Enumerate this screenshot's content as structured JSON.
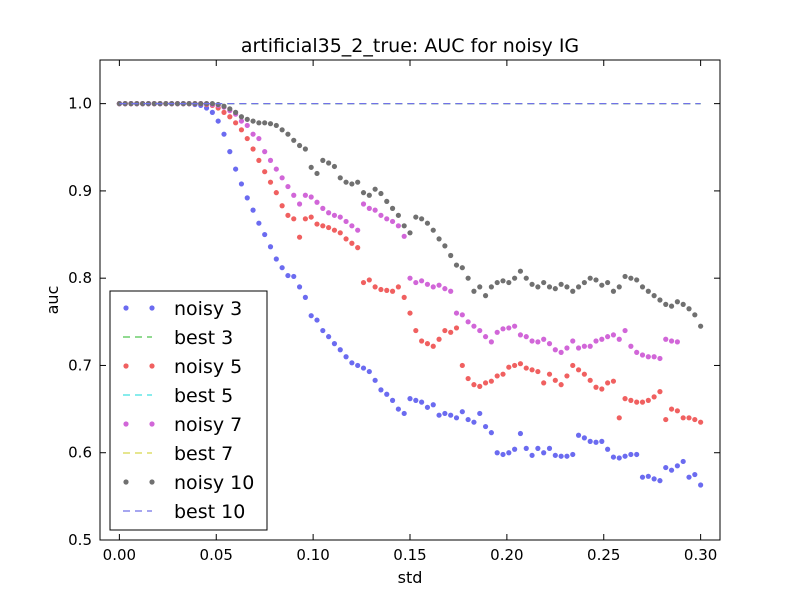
{
  "chart_data": {
    "type": "scatter",
    "title": "artificial35_2_true: AUC for noisy IG",
    "xlabel": "std",
    "ylabel": "auc",
    "xlim": [
      -0.01,
      0.31
    ],
    "ylim": [
      0.5,
      1.05
    ],
    "xticks": [
      "0.00",
      "0.05",
      "0.10",
      "0.15",
      "0.20",
      "0.25",
      "0.30"
    ],
    "yticks": [
      "0.5",
      "0.6",
      "0.7",
      "0.8",
      "0.9",
      "1.0"
    ],
    "legend_position": "lower-left",
    "grid": false,
    "series": [
      {
        "name": "noisy 3",
        "kind": "points",
        "color": "#6b6bf0",
        "x": [
          0.0,
          0.003,
          0.006,
          0.009,
          0.012,
          0.015,
          0.018,
          0.021,
          0.024,
          0.027,
          0.03,
          0.033,
          0.036,
          0.039,
          0.042,
          0.045,
          0.048,
          0.051,
          0.054,
          0.057,
          0.06,
          0.063,
          0.066,
          0.069,
          0.072,
          0.075,
          0.078,
          0.081,
          0.084,
          0.087,
          0.09,
          0.093,
          0.096,
          0.099,
          0.102,
          0.105,
          0.108,
          0.111,
          0.114,
          0.117,
          0.12,
          0.123,
          0.126,
          0.129,
          0.132,
          0.135,
          0.138,
          0.141,
          0.144,
          0.147,
          0.15,
          0.153,
          0.156,
          0.159,
          0.162,
          0.165,
          0.168,
          0.171,
          0.174,
          0.177,
          0.18,
          0.183,
          0.186,
          0.189,
          0.192,
          0.195,
          0.198,
          0.201,
          0.204,
          0.207,
          0.21,
          0.213,
          0.216,
          0.219,
          0.222,
          0.225,
          0.228,
          0.231,
          0.234,
          0.237,
          0.24,
          0.243,
          0.246,
          0.249,
          0.252,
          0.255,
          0.258,
          0.261,
          0.264,
          0.267,
          0.27,
          0.273,
          0.276,
          0.279,
          0.282,
          0.285,
          0.288,
          0.291,
          0.294,
          0.297,
          0.3
        ],
        "y": [
          1.0,
          1.0,
          1.0,
          1.0,
          1.0,
          1.0,
          1.0,
          1.0,
          1.0,
          1.0,
          1.0,
          1.0,
          1.0,
          0.999,
          0.998,
          0.995,
          0.99,
          0.98,
          0.965,
          0.945,
          0.925,
          0.908,
          0.892,
          0.878,
          0.863,
          0.85,
          0.836,
          0.822,
          0.812,
          0.803,
          0.802,
          0.79,
          0.778,
          0.757,
          0.752,
          0.74,
          0.733,
          0.725,
          0.718,
          0.71,
          0.703,
          0.7,
          0.697,
          0.693,
          0.683,
          0.672,
          0.667,
          0.66,
          0.65,
          0.645,
          0.662,
          0.66,
          0.658,
          0.652,
          0.655,
          0.643,
          0.645,
          0.643,
          0.64,
          0.647,
          0.638,
          0.635,
          0.645,
          0.63,
          0.623,
          0.6,
          0.598,
          0.6,
          0.604,
          0.622,
          0.605,
          0.597,
          0.605,
          0.6,
          0.605,
          0.597,
          0.596,
          0.596,
          0.598,
          0.62,
          0.617,
          0.613,
          0.612,
          0.613,
          0.604,
          0.595,
          0.594,
          0.596,
          0.598,
          0.598,
          0.572,
          0.573,
          0.57,
          0.568,
          0.583,
          0.58,
          0.585,
          0.59,
          0.572,
          0.575,
          0.563
        ]
      },
      {
        "name": "best 3",
        "kind": "dashed",
        "color": "#4fc44f",
        "x": [
          0.0,
          0.3
        ],
        "y": [
          1.0,
          1.0
        ]
      },
      {
        "name": "noisy 5",
        "kind": "points",
        "color": "#f06060",
        "x": [
          0.0,
          0.003,
          0.006,
          0.009,
          0.012,
          0.015,
          0.018,
          0.021,
          0.024,
          0.027,
          0.03,
          0.033,
          0.036,
          0.039,
          0.042,
          0.045,
          0.048,
          0.051,
          0.054,
          0.057,
          0.06,
          0.063,
          0.066,
          0.069,
          0.072,
          0.075,
          0.078,
          0.081,
          0.084,
          0.087,
          0.09,
          0.093,
          0.096,
          0.099,
          0.102,
          0.105,
          0.108,
          0.111,
          0.114,
          0.117,
          0.12,
          0.123,
          0.126,
          0.129,
          0.132,
          0.135,
          0.138,
          0.141,
          0.144,
          0.147,
          0.15,
          0.153,
          0.156,
          0.159,
          0.162,
          0.165,
          0.168,
          0.171,
          0.174,
          0.177,
          0.18,
          0.183,
          0.186,
          0.189,
          0.192,
          0.195,
          0.198,
          0.201,
          0.204,
          0.207,
          0.21,
          0.213,
          0.216,
          0.219,
          0.222,
          0.225,
          0.228,
          0.231,
          0.234,
          0.237,
          0.24,
          0.243,
          0.246,
          0.249,
          0.252,
          0.255,
          0.258,
          0.261,
          0.264,
          0.267,
          0.27,
          0.273,
          0.276,
          0.279,
          0.282,
          0.285,
          0.288,
          0.291,
          0.294,
          0.297,
          0.3
        ],
        "y": [
          1.0,
          1.0,
          1.0,
          1.0,
          1.0,
          1.0,
          1.0,
          1.0,
          1.0,
          1.0,
          1.0,
          1.0,
          1.0,
          1.0,
          1.0,
          0.999,
          0.998,
          0.995,
          0.99,
          0.985,
          0.978,
          0.97,
          0.96,
          0.948,
          0.935,
          0.922,
          0.91,
          0.898,
          0.883,
          0.872,
          0.868,
          0.847,
          0.868,
          0.87,
          0.862,
          0.86,
          0.858,
          0.855,
          0.852,
          0.845,
          0.84,
          0.835,
          0.795,
          0.798,
          0.79,
          0.787,
          0.786,
          0.785,
          0.79,
          0.778,
          0.76,
          0.74,
          0.728,
          0.725,
          0.722,
          0.73,
          0.74,
          0.738,
          0.743,
          0.7,
          0.685,
          0.678,
          0.676,
          0.68,
          0.682,
          0.688,
          0.69,
          0.698,
          0.7,
          0.702,
          0.697,
          0.695,
          0.693,
          0.68,
          0.69,
          0.683,
          0.678,
          0.688,
          0.7,
          0.695,
          0.69,
          0.683,
          0.675,
          0.673,
          0.68,
          0.682,
          0.64,
          0.662,
          0.66,
          0.658,
          0.658,
          0.66,
          0.664,
          0.67,
          0.638,
          0.65,
          0.648,
          0.64,
          0.64,
          0.638,
          0.635
        ]
      },
      {
        "name": "best 5",
        "kind": "dashed",
        "color": "#40e0e0",
        "x": [
          0.0,
          0.3
        ],
        "y": [
          1.0,
          1.0
        ]
      },
      {
        "name": "noisy 7",
        "kind": "points",
        "color": "#d166d8",
        "x": [
          0.0,
          0.003,
          0.006,
          0.009,
          0.012,
          0.015,
          0.018,
          0.021,
          0.024,
          0.027,
          0.03,
          0.033,
          0.036,
          0.039,
          0.042,
          0.045,
          0.048,
          0.051,
          0.054,
          0.057,
          0.06,
          0.063,
          0.066,
          0.069,
          0.072,
          0.075,
          0.078,
          0.081,
          0.084,
          0.087,
          0.09,
          0.093,
          0.096,
          0.099,
          0.102,
          0.105,
          0.108,
          0.111,
          0.114,
          0.117,
          0.12,
          0.123,
          0.126,
          0.129,
          0.132,
          0.135,
          0.138,
          0.141,
          0.144,
          0.147,
          0.15,
          0.153,
          0.156,
          0.159,
          0.162,
          0.165,
          0.168,
          0.171,
          0.174,
          0.177,
          0.18,
          0.183,
          0.186,
          0.189,
          0.192,
          0.195,
          0.198,
          0.201,
          0.204,
          0.207,
          0.21,
          0.213,
          0.216,
          0.219,
          0.222,
          0.225,
          0.228,
          0.231,
          0.234,
          0.237,
          0.24,
          0.243,
          0.246,
          0.249,
          0.252,
          0.255,
          0.258,
          0.261,
          0.264,
          0.267,
          0.27,
          0.273,
          0.276,
          0.279,
          0.282,
          0.285,
          0.288
        ],
        "y": [
          1.0,
          1.0,
          1.0,
          1.0,
          1.0,
          1.0,
          1.0,
          1.0,
          1.0,
          1.0,
          1.0,
          1.0,
          1.0,
          1.0,
          1.0,
          1.0,
          0.999,
          0.998,
          0.996,
          0.992,
          0.988,
          0.98,
          0.975,
          0.965,
          0.96,
          0.945,
          0.935,
          0.925,
          0.915,
          0.905,
          0.895,
          0.885,
          0.895,
          0.893,
          0.887,
          0.88,
          0.875,
          0.872,
          0.87,
          0.865,
          0.86,
          0.855,
          0.885,
          0.88,
          0.878,
          0.872,
          0.868,
          0.865,
          0.86,
          0.848,
          0.8,
          0.795,
          0.797,
          0.793,
          0.79,
          0.792,
          0.788,
          0.785,
          0.76,
          0.758,
          0.75,
          0.745,
          0.74,
          0.733,
          0.727,
          0.738,
          0.742,
          0.743,
          0.745,
          0.735,
          0.733,
          0.728,
          0.727,
          0.73,
          0.725,
          0.718,
          0.715,
          0.72,
          0.728,
          0.72,
          0.722,
          0.722,
          0.728,
          0.73,
          0.733,
          0.735,
          0.73,
          0.74,
          0.722,
          0.715,
          0.712,
          0.71,
          0.71,
          0.708,
          0.73,
          0.728,
          0.727
        ]
      },
      {
        "name": "best 7",
        "kind": "dashed",
        "color": "#d8d84c",
        "x": [
          0.0,
          0.3
        ],
        "y": [
          1.0,
          1.0
        ]
      },
      {
        "name": "noisy 10",
        "kind": "points",
        "color": "#707070",
        "x": [
          0.0,
          0.003,
          0.006,
          0.009,
          0.012,
          0.015,
          0.018,
          0.021,
          0.024,
          0.027,
          0.03,
          0.033,
          0.036,
          0.039,
          0.042,
          0.045,
          0.048,
          0.051,
          0.054,
          0.057,
          0.06,
          0.063,
          0.066,
          0.069,
          0.072,
          0.075,
          0.078,
          0.081,
          0.084,
          0.087,
          0.09,
          0.093,
          0.096,
          0.099,
          0.102,
          0.105,
          0.108,
          0.111,
          0.114,
          0.117,
          0.12,
          0.123,
          0.126,
          0.129,
          0.132,
          0.135,
          0.138,
          0.141,
          0.144,
          0.147,
          0.15,
          0.153,
          0.156,
          0.159,
          0.162,
          0.165,
          0.168,
          0.171,
          0.174,
          0.177,
          0.18,
          0.183,
          0.186,
          0.189,
          0.192,
          0.195,
          0.198,
          0.201,
          0.204,
          0.207,
          0.21,
          0.213,
          0.216,
          0.219,
          0.222,
          0.225,
          0.228,
          0.231,
          0.234,
          0.237,
          0.24,
          0.243,
          0.246,
          0.249,
          0.252,
          0.255,
          0.258,
          0.261,
          0.264,
          0.267,
          0.27,
          0.273,
          0.276,
          0.279,
          0.282,
          0.285,
          0.288,
          0.291,
          0.294,
          0.297,
          0.3
        ],
        "y": [
          1.0,
          1.0,
          1.0,
          1.0,
          1.0,
          1.0,
          1.0,
          1.0,
          1.0,
          1.0,
          1.0,
          1.0,
          1.0,
          1.0,
          1.0,
          1.0,
          1.0,
          0.999,
          0.997,
          0.994,
          0.99,
          0.985,
          0.982,
          0.98,
          0.978,
          0.978,
          0.977,
          0.975,
          0.97,
          0.965,
          0.958,
          0.952,
          0.948,
          0.927,
          0.92,
          0.935,
          0.932,
          0.928,
          0.915,
          0.91,
          0.908,
          0.91,
          0.898,
          0.895,
          0.902,
          0.897,
          0.888,
          0.88,
          0.872,
          0.86,
          0.852,
          0.87,
          0.868,
          0.863,
          0.855,
          0.845,
          0.837,
          0.826,
          0.815,
          0.812,
          0.8,
          0.785,
          0.79,
          0.78,
          0.79,
          0.795,
          0.797,
          0.795,
          0.8,
          0.808,
          0.8,
          0.793,
          0.79,
          0.795,
          0.79,
          0.788,
          0.793,
          0.79,
          0.785,
          0.79,
          0.795,
          0.8,
          0.798,
          0.792,
          0.795,
          0.785,
          0.79,
          0.802,
          0.8,
          0.798,
          0.79,
          0.785,
          0.78,
          0.775,
          0.77,
          0.768,
          0.773,
          0.77,
          0.765,
          0.758,
          0.745
        ]
      },
      {
        "name": "best 10",
        "kind": "dashed",
        "color": "#7070e8",
        "x": [
          0.0,
          0.3
        ],
        "y": [
          1.0,
          1.0
        ]
      }
    ]
  }
}
